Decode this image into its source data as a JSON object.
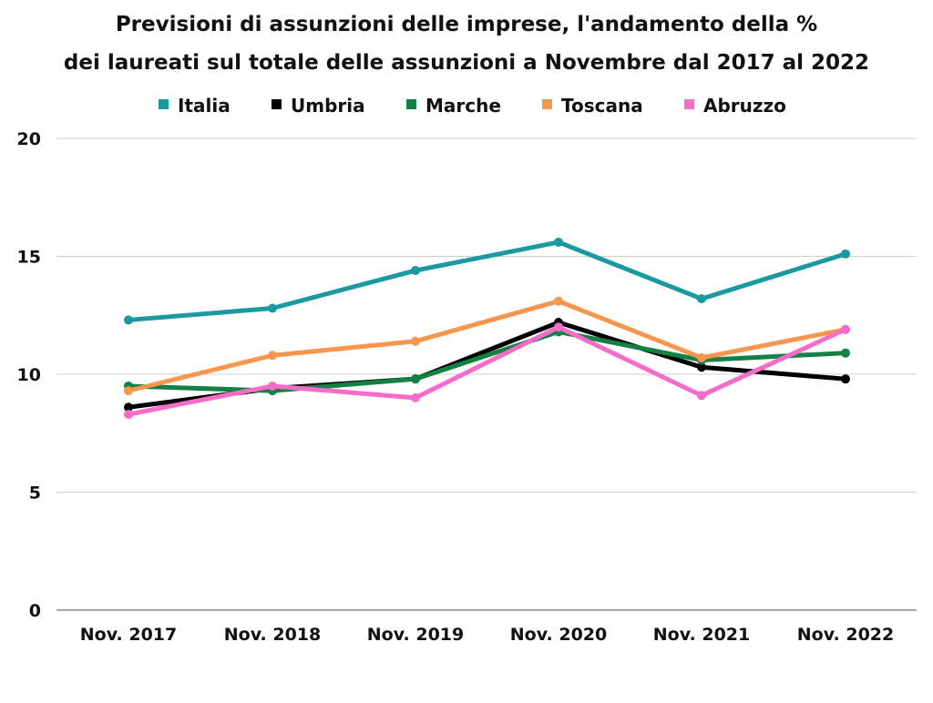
{
  "chart_data": {
    "type": "line",
    "title_lines": [
      "Previsioni di assunzioni delle imprese, l'andamento della %",
      "dei laureati sul totale delle assunzioni a Novembre dal 2017 al 2022"
    ],
    "xlabel": "",
    "ylabel": "",
    "categories": [
      "Nov. 2017",
      "Nov. 2018",
      "Nov. 2019",
      "Nov. 2020",
      "Nov. 2021",
      "Nov. 2022"
    ],
    "ylim": [
      0,
      20
    ],
    "yticks": [
      0,
      5,
      10,
      15,
      20
    ],
    "grid": true,
    "legend_position": "top",
    "series": [
      {
        "name": "Italia",
        "color": "#1a9aa0",
        "values": [
          12.3,
          12.8,
          14.4,
          15.6,
          13.2,
          15.1
        ]
      },
      {
        "name": "Umbria",
        "color": "#000000",
        "values": [
          8.6,
          9.4,
          9.8,
          12.2,
          10.3,
          9.8
        ]
      },
      {
        "name": "Marche",
        "color": "#138044",
        "values": [
          9.5,
          9.3,
          9.8,
          11.8,
          10.6,
          10.9
        ]
      },
      {
        "name": "Toscana",
        "color": "#f7964e",
        "values": [
          9.3,
          10.8,
          11.4,
          13.1,
          10.7,
          11.9
        ]
      },
      {
        "name": "Abruzzo",
        "color": "#f56cc9",
        "values": [
          8.3,
          9.5,
          9.0,
          12.0,
          9.1,
          11.9
        ]
      }
    ]
  }
}
